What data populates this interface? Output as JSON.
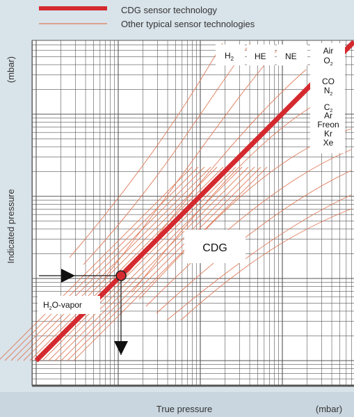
{
  "colors": {
    "background": "#d9e3ea",
    "plot_area": "#ffffff",
    "grid": "#555555",
    "cdg_line": "#d42a2f",
    "other_lines": "#e07a5a",
    "annotation_arrow": "#111111"
  },
  "chart_data": {
    "type": "line",
    "title": "",
    "xlabel": "True pressure",
    "xunit": "(mbar)",
    "ylabel": "Indicated pressure",
    "yunit": "(mbar)",
    "scale": "log-log",
    "grid": true,
    "legend_position": "top",
    "legend": [
      {
        "label": "CDG sensor technology",
        "style": "thick"
      },
      {
        "label": "Other typical sensor technologies",
        "style": "thin"
      }
    ],
    "series": [
      {
        "name": "CDG sensor technology",
        "kind": "ideal-response",
        "slope": 1
      }
    ],
    "gas_labels": [
      {
        "id": "h2",
        "base": "H",
        "sub": "2"
      },
      {
        "id": "he",
        "base": "HE",
        "sub": ""
      },
      {
        "id": "ne",
        "base": "NE",
        "sub": ""
      }
    ],
    "gas_list": [
      {
        "base": "Air",
        "sub": ""
      },
      {
        "base": "O",
        "sub": "2"
      },
      {
        "base": "CO",
        "sub": ""
      },
      {
        "base": "N",
        "sub": "2"
      },
      {
        "base": "C",
        "sub": "2"
      },
      {
        "base": "Ar",
        "sub": ""
      },
      {
        "base": "Freon",
        "sub": ""
      },
      {
        "base": "Kr",
        "sub": ""
      },
      {
        "base": "Xe",
        "sub": ""
      }
    ],
    "annotations": [
      {
        "id": "cdg",
        "text": "CDG"
      },
      {
        "id": "h2o",
        "base": "H",
        "sub": "2",
        "rest": "O-vapor"
      }
    ]
  }
}
